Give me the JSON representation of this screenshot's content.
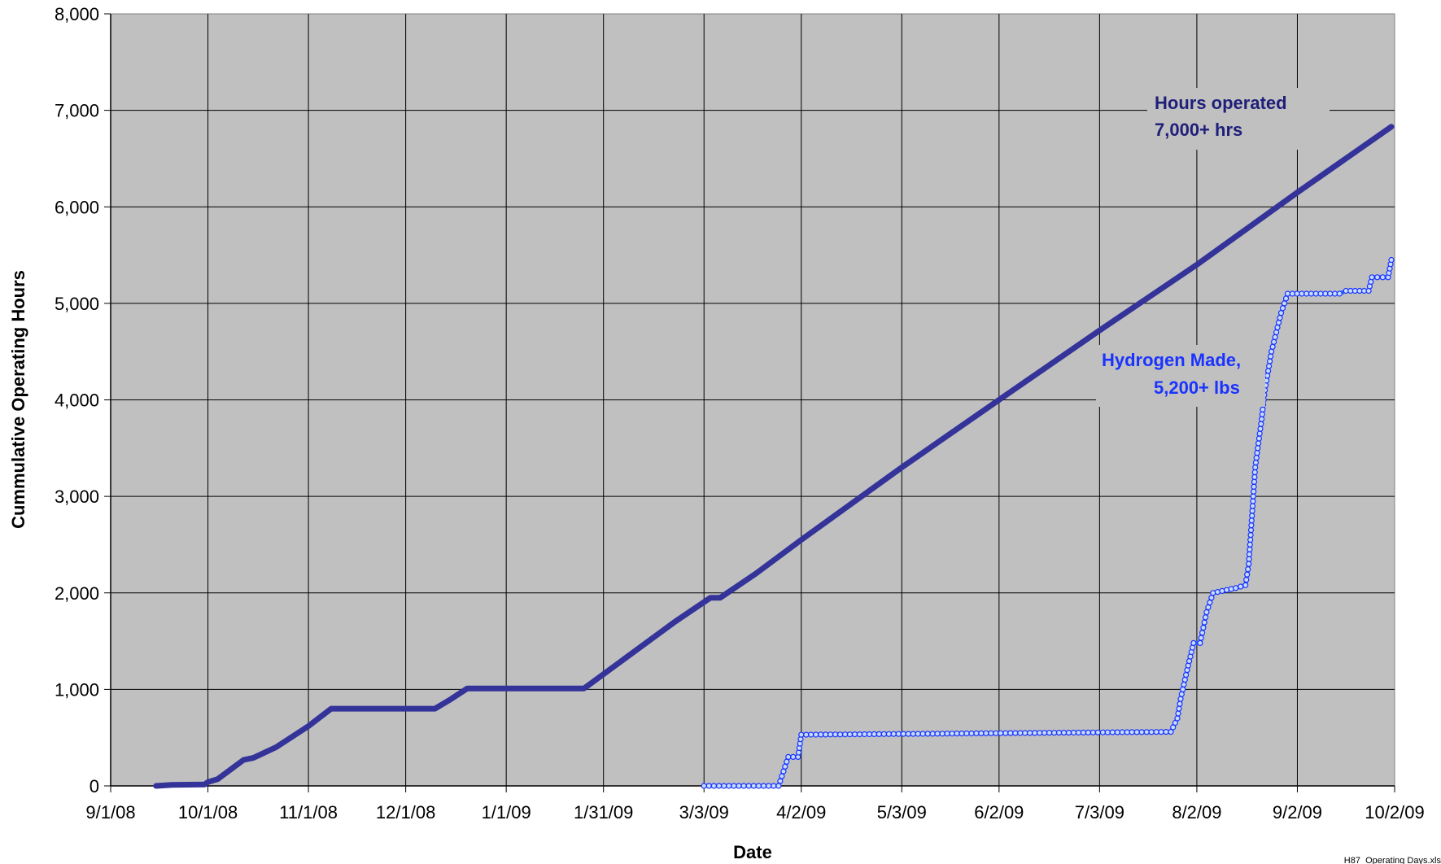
{
  "chart_data": {
    "type": "line",
    "xlabel": "Date",
    "ylabel": "Cummulative Operating Hours",
    "xlim": [
      "2008-09-01",
      "2009-10-02"
    ],
    "ylim": [
      0,
      8000
    ],
    "x_tick_labels": [
      "9/1/08",
      "10/1/08",
      "11/1/08",
      "12/1/08",
      "1/1/09",
      "1/31/09",
      "3/3/09",
      "4/2/09",
      "5/3/09",
      "6/2/09",
      "7/3/09",
      "8/2/09",
      "9/2/09",
      "10/2/09"
    ],
    "y_tick_labels": [
      "0",
      "1,000",
      "2,000",
      "3,000",
      "4,000",
      "5,000",
      "6,000",
      "7,000",
      "8,000"
    ],
    "y_ticks": [
      0,
      1000,
      2000,
      3000,
      4000,
      5000,
      6000,
      7000,
      8000
    ],
    "grid": true,
    "plot_background": "#c0c0c0",
    "annotations": {
      "hours_line1": "Hours operated",
      "hours_line2": "7,000+ hrs",
      "hydrogen_line1": "Hydrogen Made,",
      "hydrogen_line2": "5,200+ lbs"
    },
    "footer_text": "H87_Operating Days.xls",
    "series": [
      {
        "color": "#333399",
        "marker": "none",
        "points": [
          [
            "2008-09-15",
            0
          ],
          [
            "2008-09-20",
            10
          ],
          [
            "2008-09-30",
            15
          ],
          [
            "2008-10-01",
            40
          ],
          [
            "2008-10-04",
            70
          ],
          [
            "2008-10-12",
            270
          ],
          [
            "2008-10-15",
            290
          ],
          [
            "2008-10-22",
            400
          ],
          [
            "2008-11-01",
            620
          ],
          [
            "2008-11-08",
            800
          ],
          [
            "2008-12-10",
            800
          ],
          [
            "2008-12-15",
            900
          ],
          [
            "2008-12-20",
            1010
          ],
          [
            "2009-01-25",
            1010
          ],
          [
            "2009-02-22",
            1700
          ],
          [
            "2009-03-05",
            1950
          ],
          [
            "2009-03-08",
            1950
          ],
          [
            "2009-03-19",
            2200
          ],
          [
            "2009-04-02",
            2550
          ],
          [
            "2009-05-03",
            3300
          ],
          [
            "2009-06-02",
            4000
          ],
          [
            "2009-07-03",
            4720
          ],
          [
            "2009-08-02",
            5400
          ],
          [
            "2009-09-02",
            6150
          ],
          [
            "2009-10-01",
            6830
          ]
        ]
      },
      {
        "color": "#3366ff",
        "marker": "circle",
        "points": [
          [
            "2009-03-03",
            0
          ],
          [
            "2009-03-26",
            0
          ],
          [
            "2009-03-27",
            100
          ],
          [
            "2009-03-28",
            200
          ],
          [
            "2009-03-29",
            300
          ],
          [
            "2009-04-01",
            300
          ],
          [
            "2009-04-02",
            530
          ],
          [
            "2009-07-25",
            560
          ],
          [
            "2009-07-27",
            700
          ],
          [
            "2009-07-28",
            900
          ],
          [
            "2009-07-30",
            1200
          ],
          [
            "2009-08-01",
            1480
          ],
          [
            "2009-08-03",
            1480
          ],
          [
            "2009-08-05",
            1800
          ],
          [
            "2009-08-07",
            2000
          ],
          [
            "2009-08-14",
            2050
          ],
          [
            "2009-08-17",
            2080
          ],
          [
            "2009-08-18",
            2300
          ],
          [
            "2009-08-20",
            3300
          ],
          [
            "2009-08-22",
            3800
          ],
          [
            "2009-08-23",
            4100
          ],
          [
            "2009-08-25",
            4500
          ],
          [
            "2009-08-28",
            4900
          ],
          [
            "2009-08-30",
            5100
          ],
          [
            "2009-09-15",
            5100
          ],
          [
            "2009-09-17",
            5130
          ],
          [
            "2009-09-24",
            5130
          ],
          [
            "2009-09-25",
            5270
          ],
          [
            "2009-09-30",
            5270
          ],
          [
            "2009-10-01",
            5450
          ]
        ]
      }
    ]
  }
}
